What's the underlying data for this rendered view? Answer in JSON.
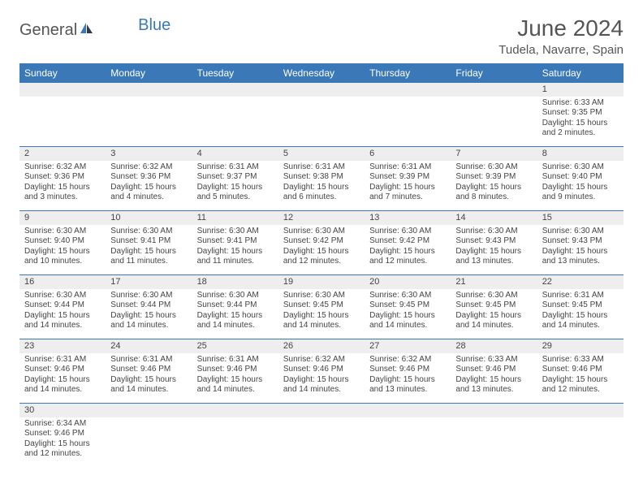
{
  "brand": {
    "general": "General",
    "blue": "Blue"
  },
  "title": "June 2024",
  "location": "Tudela, Navarre, Spain",
  "colors": {
    "header_bg": "#3a78b8",
    "stripe_bg": "#eeeeee"
  },
  "day_headers": [
    "Sunday",
    "Monday",
    "Tuesday",
    "Wednesday",
    "Thursday",
    "Friday",
    "Saturday"
  ],
  "weeks": [
    [
      {
        "n": "",
        "sr": "",
        "ss": "",
        "dl": ""
      },
      {
        "n": "",
        "sr": "",
        "ss": "",
        "dl": ""
      },
      {
        "n": "",
        "sr": "",
        "ss": "",
        "dl": ""
      },
      {
        "n": "",
        "sr": "",
        "ss": "",
        "dl": ""
      },
      {
        "n": "",
        "sr": "",
        "ss": "",
        "dl": ""
      },
      {
        "n": "",
        "sr": "",
        "ss": "",
        "dl": ""
      },
      {
        "n": "1",
        "sr": "Sunrise: 6:33 AM",
        "ss": "Sunset: 9:35 PM",
        "dl": "Daylight: 15 hours and 2 minutes."
      }
    ],
    [
      {
        "n": "2",
        "sr": "Sunrise: 6:32 AM",
        "ss": "Sunset: 9:36 PM",
        "dl": "Daylight: 15 hours and 3 minutes."
      },
      {
        "n": "3",
        "sr": "Sunrise: 6:32 AM",
        "ss": "Sunset: 9:36 PM",
        "dl": "Daylight: 15 hours and 4 minutes."
      },
      {
        "n": "4",
        "sr": "Sunrise: 6:31 AM",
        "ss": "Sunset: 9:37 PM",
        "dl": "Daylight: 15 hours and 5 minutes."
      },
      {
        "n": "5",
        "sr": "Sunrise: 6:31 AM",
        "ss": "Sunset: 9:38 PM",
        "dl": "Daylight: 15 hours and 6 minutes."
      },
      {
        "n": "6",
        "sr": "Sunrise: 6:31 AM",
        "ss": "Sunset: 9:39 PM",
        "dl": "Daylight: 15 hours and 7 minutes."
      },
      {
        "n": "7",
        "sr": "Sunrise: 6:30 AM",
        "ss": "Sunset: 9:39 PM",
        "dl": "Daylight: 15 hours and 8 minutes."
      },
      {
        "n": "8",
        "sr": "Sunrise: 6:30 AM",
        "ss": "Sunset: 9:40 PM",
        "dl": "Daylight: 15 hours and 9 minutes."
      }
    ],
    [
      {
        "n": "9",
        "sr": "Sunrise: 6:30 AM",
        "ss": "Sunset: 9:40 PM",
        "dl": "Daylight: 15 hours and 10 minutes."
      },
      {
        "n": "10",
        "sr": "Sunrise: 6:30 AM",
        "ss": "Sunset: 9:41 PM",
        "dl": "Daylight: 15 hours and 11 minutes."
      },
      {
        "n": "11",
        "sr": "Sunrise: 6:30 AM",
        "ss": "Sunset: 9:41 PM",
        "dl": "Daylight: 15 hours and 11 minutes."
      },
      {
        "n": "12",
        "sr": "Sunrise: 6:30 AM",
        "ss": "Sunset: 9:42 PM",
        "dl": "Daylight: 15 hours and 12 minutes."
      },
      {
        "n": "13",
        "sr": "Sunrise: 6:30 AM",
        "ss": "Sunset: 9:42 PM",
        "dl": "Daylight: 15 hours and 12 minutes."
      },
      {
        "n": "14",
        "sr": "Sunrise: 6:30 AM",
        "ss": "Sunset: 9:43 PM",
        "dl": "Daylight: 15 hours and 13 minutes."
      },
      {
        "n": "15",
        "sr": "Sunrise: 6:30 AM",
        "ss": "Sunset: 9:43 PM",
        "dl": "Daylight: 15 hours and 13 minutes."
      }
    ],
    [
      {
        "n": "16",
        "sr": "Sunrise: 6:30 AM",
        "ss": "Sunset: 9:44 PM",
        "dl": "Daylight: 15 hours and 14 minutes."
      },
      {
        "n": "17",
        "sr": "Sunrise: 6:30 AM",
        "ss": "Sunset: 9:44 PM",
        "dl": "Daylight: 15 hours and 14 minutes."
      },
      {
        "n": "18",
        "sr": "Sunrise: 6:30 AM",
        "ss": "Sunset: 9:44 PM",
        "dl": "Daylight: 15 hours and 14 minutes."
      },
      {
        "n": "19",
        "sr": "Sunrise: 6:30 AM",
        "ss": "Sunset: 9:45 PM",
        "dl": "Daylight: 15 hours and 14 minutes."
      },
      {
        "n": "20",
        "sr": "Sunrise: 6:30 AM",
        "ss": "Sunset: 9:45 PM",
        "dl": "Daylight: 15 hours and 14 minutes."
      },
      {
        "n": "21",
        "sr": "Sunrise: 6:30 AM",
        "ss": "Sunset: 9:45 PM",
        "dl": "Daylight: 15 hours and 14 minutes."
      },
      {
        "n": "22",
        "sr": "Sunrise: 6:31 AM",
        "ss": "Sunset: 9:45 PM",
        "dl": "Daylight: 15 hours and 14 minutes."
      }
    ],
    [
      {
        "n": "23",
        "sr": "Sunrise: 6:31 AM",
        "ss": "Sunset: 9:46 PM",
        "dl": "Daylight: 15 hours and 14 minutes."
      },
      {
        "n": "24",
        "sr": "Sunrise: 6:31 AM",
        "ss": "Sunset: 9:46 PM",
        "dl": "Daylight: 15 hours and 14 minutes."
      },
      {
        "n": "25",
        "sr": "Sunrise: 6:31 AM",
        "ss": "Sunset: 9:46 PM",
        "dl": "Daylight: 15 hours and 14 minutes."
      },
      {
        "n": "26",
        "sr": "Sunrise: 6:32 AM",
        "ss": "Sunset: 9:46 PM",
        "dl": "Daylight: 15 hours and 14 minutes."
      },
      {
        "n": "27",
        "sr": "Sunrise: 6:32 AM",
        "ss": "Sunset: 9:46 PM",
        "dl": "Daylight: 15 hours and 13 minutes."
      },
      {
        "n": "28",
        "sr": "Sunrise: 6:33 AM",
        "ss": "Sunset: 9:46 PM",
        "dl": "Daylight: 15 hours and 13 minutes."
      },
      {
        "n": "29",
        "sr": "Sunrise: 6:33 AM",
        "ss": "Sunset: 9:46 PM",
        "dl": "Daylight: 15 hours and 12 minutes."
      }
    ],
    [
      {
        "n": "30",
        "sr": "Sunrise: 6:34 AM",
        "ss": "Sunset: 9:46 PM",
        "dl": "Daylight: 15 hours and 12 minutes."
      },
      {
        "n": "",
        "sr": "",
        "ss": "",
        "dl": ""
      },
      {
        "n": "",
        "sr": "",
        "ss": "",
        "dl": ""
      },
      {
        "n": "",
        "sr": "",
        "ss": "",
        "dl": ""
      },
      {
        "n": "",
        "sr": "",
        "ss": "",
        "dl": ""
      },
      {
        "n": "",
        "sr": "",
        "ss": "",
        "dl": ""
      },
      {
        "n": "",
        "sr": "",
        "ss": "",
        "dl": ""
      }
    ]
  ]
}
